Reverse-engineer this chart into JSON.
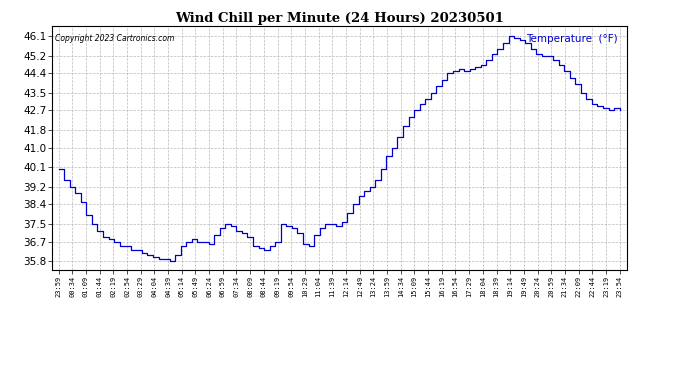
{
  "title": "Wind Chill per Minute (24 Hours) 20230501",
  "copyright": "Copyright 2023 Cartronics.com",
  "legend_label": "Temperature  (°F)",
  "line_color": "#0000CC",
  "legend_color": "#0000CC",
  "background_color": "#ffffff",
  "plot_bg_color": "#ffffff",
  "grid_color": "#aaaaaa",
  "ylim_min": 35.4,
  "ylim_max": 46.55,
  "yticks": [
    35.8,
    36.7,
    37.5,
    38.4,
    39.2,
    40.1,
    41.0,
    41.8,
    42.7,
    43.5,
    44.4,
    45.2,
    46.1
  ],
  "x_labels": [
    "23:59",
    "00:34",
    "01:09",
    "01:44",
    "02:19",
    "02:54",
    "03:29",
    "04:04",
    "04:39",
    "05:14",
    "05:49",
    "06:24",
    "06:59",
    "07:34",
    "08:09",
    "08:44",
    "09:19",
    "09:54",
    "10:29",
    "11:04",
    "11:39",
    "12:14",
    "12:49",
    "13:24",
    "13:59",
    "14:34",
    "15:09",
    "15:44",
    "16:19",
    "16:54",
    "17:29",
    "18:04",
    "18:39",
    "19:14",
    "19:49",
    "20:24",
    "20:59",
    "21:34",
    "22:09",
    "22:44",
    "23:19",
    "23:54"
  ],
  "data_y": [
    40.0,
    39.5,
    39.2,
    38.9,
    38.5,
    37.9,
    37.5,
    37.2,
    36.9,
    36.8,
    36.7,
    36.5,
    36.5,
    36.3,
    36.3,
    36.2,
    36.1,
    36.0,
    35.9,
    35.9,
    35.8,
    36.1,
    36.5,
    36.7,
    36.8,
    36.7,
    36.7,
    36.6,
    37.0,
    37.3,
    37.5,
    37.4,
    37.2,
    37.1,
    36.9,
    36.5,
    36.4,
    36.3,
    36.5,
    36.7,
    37.5,
    37.4,
    37.3,
    37.1,
    36.6,
    36.5,
    37.0,
    37.3,
    37.5,
    37.5,
    37.4,
    37.6,
    38.0,
    38.4,
    38.8,
    39.0,
    39.2,
    39.5,
    40.0,
    40.6,
    41.0,
    41.5,
    42.0,
    42.4,
    42.7,
    43.0,
    43.2,
    43.5,
    43.8,
    44.1,
    44.4,
    44.5,
    44.6,
    44.5,
    44.6,
    44.7,
    44.8,
    45.0,
    45.3,
    45.5,
    45.8,
    46.1,
    46.0,
    45.9,
    45.8,
    45.5,
    45.3,
    45.2,
    45.2,
    45.0,
    44.8,
    44.5,
    44.2,
    43.9,
    43.5,
    43.2,
    43.0,
    42.9,
    42.8,
    42.7,
    42.8,
    42.7
  ]
}
